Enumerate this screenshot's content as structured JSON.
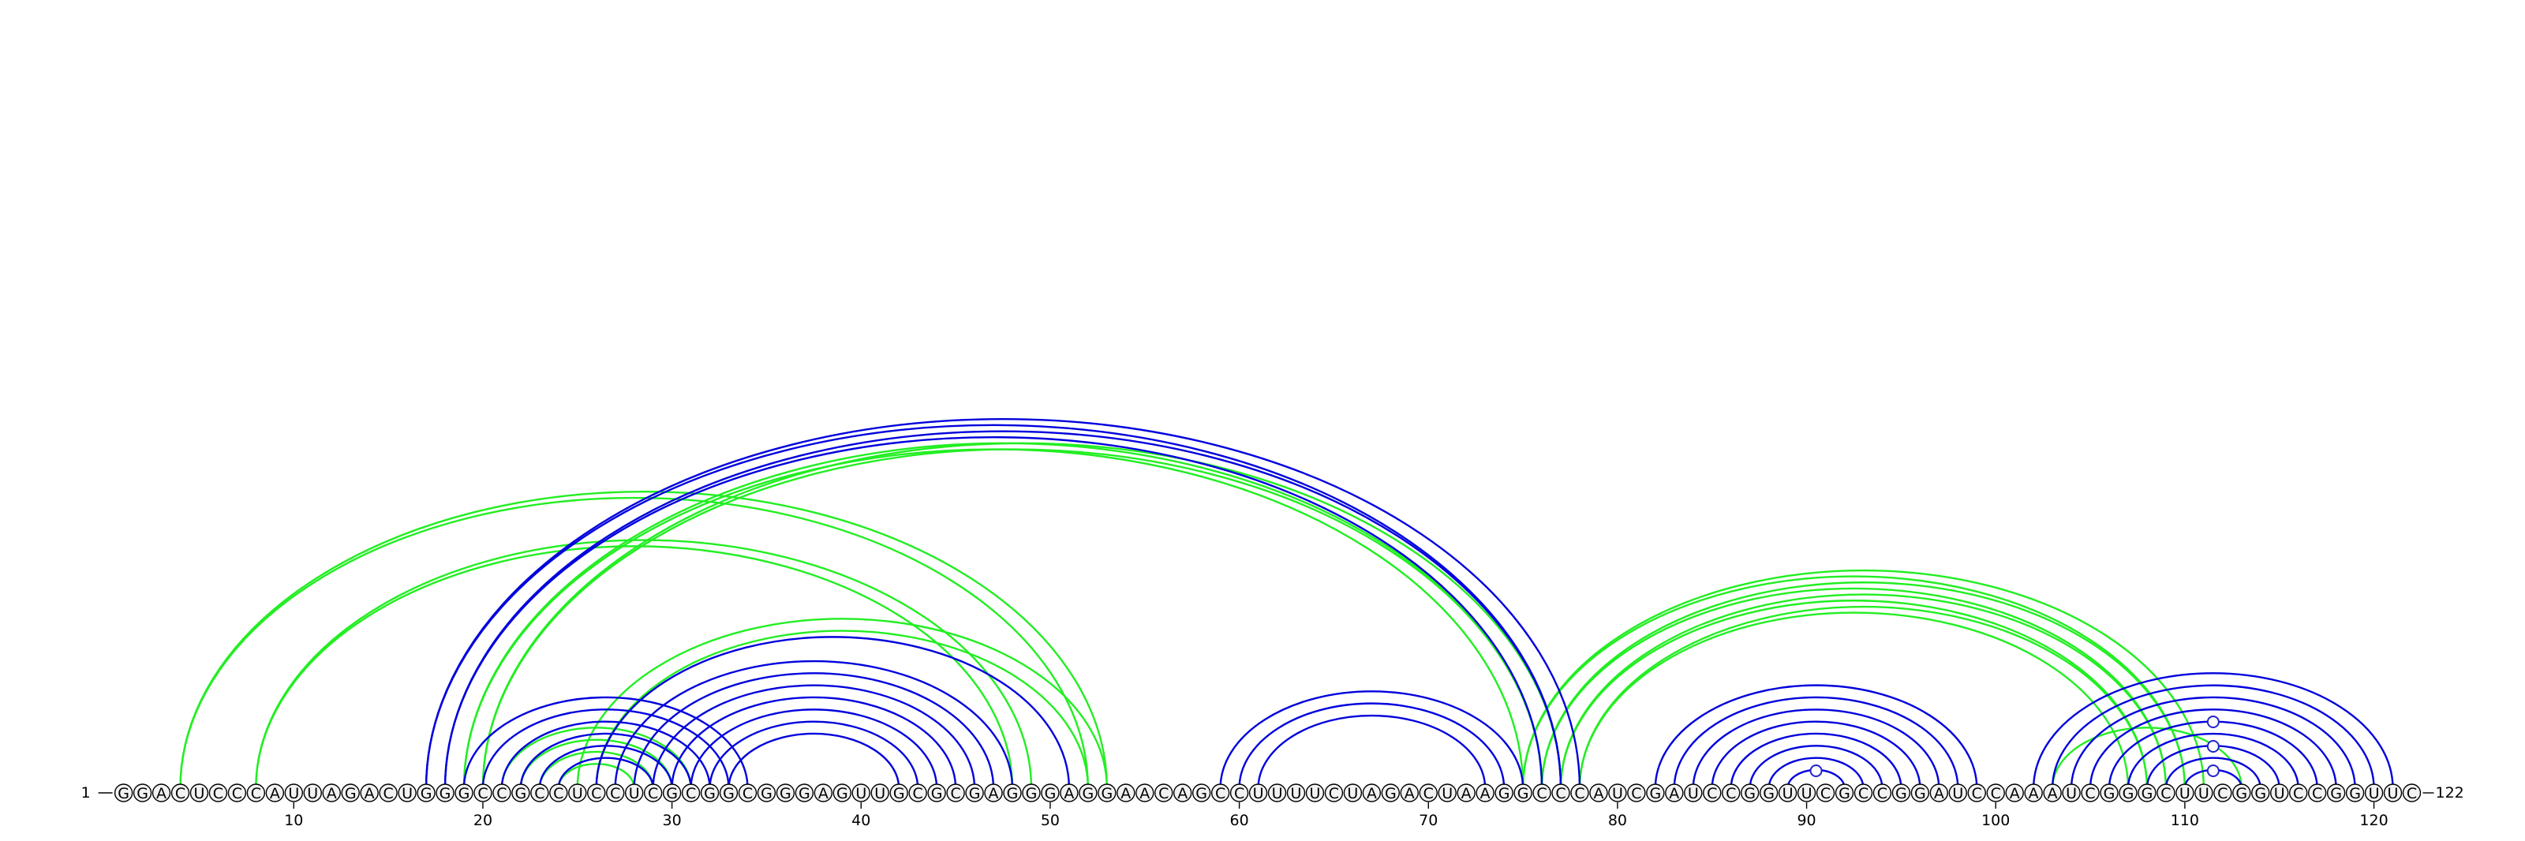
{
  "sequence": "GGACUCCCAUUAGACUGGGCCGCCUCCUCGCGGCGGGAGUUGCGCGAGGGAGGAACAGCCUUUUCUAGACUAAGGCCCAUCGAUCCGGUUCGCCGGAUCCAAAUCGGGCUUCGGUCCGGUUC",
  "start_label": "1",
  "end_label": "122",
  "tick_labels": [
    "10",
    "20",
    "30",
    "40",
    "50",
    "60",
    "70",
    "80",
    "90",
    "100",
    "110",
    "120"
  ],
  "colors": {
    "blue": "#0000dd",
    "green": "#22ee22",
    "marker_blue": "#2222cc"
  },
  "chart_data": {
    "type": "arc",
    "length": 122,
    "ticks": [
      10,
      20,
      30,
      40,
      50,
      60,
      70,
      80,
      90,
      100,
      110,
      120
    ],
    "green_arcs": [
      [
        4,
        52
      ],
      [
        4,
        53
      ],
      [
        8,
        48
      ],
      [
        8,
        49
      ],
      [
        19,
        75
      ],
      [
        19,
        76
      ],
      [
        20,
        76
      ],
      [
        20,
        77
      ],
      [
        21,
        31
      ],
      [
        22,
        30
      ],
      [
        23,
        29
      ],
      [
        24,
        28
      ],
      [
        25,
        53
      ],
      [
        26,
        52
      ],
      [
        75,
        110
      ],
      [
        75,
        111
      ],
      [
        76,
        109
      ],
      [
        76,
        110
      ],
      [
        77,
        108
      ],
      [
        77,
        109
      ],
      [
        78,
        107
      ],
      [
        78,
        108
      ],
      [
        103,
        113
      ]
    ],
    "blue_arcs": [
      [
        17,
        77
      ],
      [
        17,
        78
      ],
      [
        18,
        76
      ],
      [
        18,
        77
      ],
      [
        19,
        34
      ],
      [
        20,
        33
      ],
      [
        21,
        32
      ],
      [
        22,
        31
      ],
      [
        23,
        30
      ],
      [
        24,
        29
      ],
      [
        26,
        51
      ],
      [
        27,
        48
      ],
      [
        28,
        47
      ],
      [
        29,
        46
      ],
      [
        30,
        45
      ],
      [
        31,
        44
      ],
      [
        32,
        43
      ],
      [
        33,
        42
      ],
      [
        59,
        75
      ],
      [
        60,
        74
      ],
      [
        61,
        73
      ],
      [
        82,
        99
      ],
      [
        83,
        98
      ],
      [
        84,
        97
      ],
      [
        85,
        96
      ],
      [
        86,
        95
      ],
      [
        87,
        94
      ],
      [
        88,
        93
      ],
      [
        89,
        92
      ],
      [
        102,
        121
      ],
      [
        103,
        120
      ],
      [
        104,
        119
      ],
      [
        105,
        118
      ],
      [
        106,
        117
      ],
      [
        107,
        116
      ],
      [
        108,
        115
      ],
      [
        109,
        114
      ],
      [
        110,
        113
      ]
    ],
    "loop_markers": [
      90.5,
      111.5,
      111.5,
      111.5
    ],
    "loop_marker_levels": [
      1,
      1,
      2,
      3
    ]
  }
}
